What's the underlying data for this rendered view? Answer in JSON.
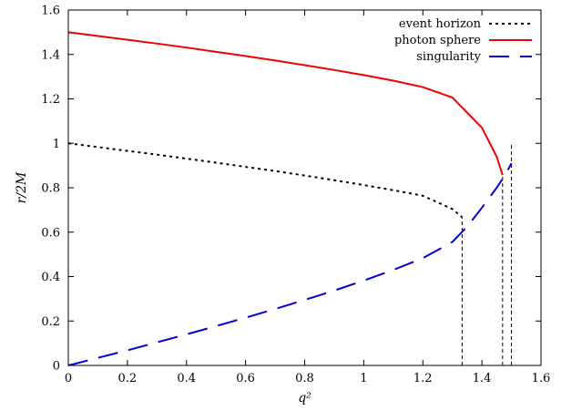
{
  "chart_data": {
    "type": "line",
    "xlabel": "q²",
    "ylabel": "r/2M",
    "xlim": [
      0,
      1.6
    ],
    "ylim": [
      0,
      1.6
    ],
    "xticks": [
      "0",
      "0.2",
      "0.4",
      "0.6",
      "0.8",
      "1",
      "1.2",
      "1.4",
      "1.6"
    ],
    "yticks": [
      "0",
      "0.2",
      "0.4",
      "0.6",
      "0.8",
      "1",
      "1.2",
      "1.4",
      "1.6"
    ],
    "grid": false,
    "legend_position": "top-right",
    "series": [
      {
        "name": "event horizon",
        "color": "#000000",
        "style": "dotted",
        "x": [
          0,
          0.1,
          0.2,
          0.3,
          0.4,
          0.5,
          0.6,
          0.7,
          0.8,
          0.9,
          1.0,
          1.1,
          1.2,
          1.3,
          1.333
        ],
        "y": [
          1.0,
          0.983,
          0.966,
          0.949,
          0.931,
          0.913,
          0.894,
          0.875,
          0.855,
          0.834,
          0.812,
          0.789,
          0.764,
          0.704,
          0.667
        ]
      },
      {
        "name": "photon sphere",
        "color": "#ee0000",
        "style": "solid",
        "x": [
          0,
          0.1,
          0.2,
          0.3,
          0.4,
          0.5,
          0.6,
          0.7,
          0.8,
          0.9,
          1.0,
          1.1,
          1.2,
          1.3,
          1.4,
          1.45,
          1.47
        ],
        "y": [
          1.5,
          1.483,
          1.466,
          1.449,
          1.431,
          1.412,
          1.393,
          1.373,
          1.352,
          1.33,
          1.307,
          1.282,
          1.253,
          1.206,
          1.07,
          0.94,
          0.857
        ]
      },
      {
        "name": "singularity",
        "color": "#0000dd",
        "style": "dashed",
        "x": [
          0,
          0.1,
          0.2,
          0.3,
          0.4,
          0.5,
          0.6,
          0.7,
          0.8,
          0.9,
          1.0,
          1.1,
          1.2,
          1.3,
          1.35,
          1.4,
          1.45,
          1.48,
          1.5
        ],
        "y": [
          0,
          0.034,
          0.068,
          0.104,
          0.14,
          0.177,
          0.215,
          0.254,
          0.295,
          0.337,
          0.382,
          0.43,
          0.483,
          0.556,
          0.625,
          0.71,
          0.8,
          0.86,
          0.91
        ]
      }
    ],
    "vertical_lines": [
      {
        "x": 1.333,
        "y_top": 0.667
      },
      {
        "x": 1.47,
        "y_top": 0.857
      },
      {
        "x": 1.5,
        "y_top": 1.0
      }
    ]
  }
}
